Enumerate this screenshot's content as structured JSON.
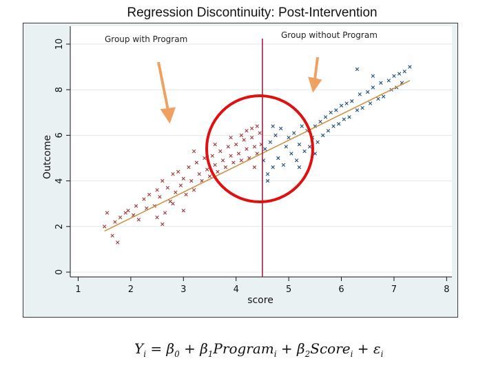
{
  "slide_title": "Regression Discontinuity: Post-Intervention",
  "labels": {
    "group_with_program": "Group with Program",
    "group_without_program": "Group without Program"
  },
  "equation": {
    "lhs": "Y",
    "rhs_a": " = β",
    "rhs_b": " + β",
    "program": "Program",
    "rhs_c": " + β",
    "score": "Score",
    "rhs_d": " + ε",
    "sub_i": "i",
    "sub_0": "0",
    "sub_1": "1",
    "sub_2": "2"
  },
  "colors": {
    "plot_background": "#ffffff",
    "frame_background": "#eaf1f3",
    "program_points": "#9b3a3a",
    "no_program_points": "#1f4e79",
    "regression_line": "#d09040",
    "cutoff_line": "#a0203a",
    "circle": "#e01010",
    "arrow": "#f0a060"
  },
  "chart_data": {
    "type": "scatter",
    "title": "",
    "xlabel": "score",
    "ylabel": "Outcome",
    "xlim": [
      0.85,
      8.1
    ],
    "ylim": [
      0,
      10
    ],
    "xticks": [
      1,
      2,
      3,
      4,
      5,
      6,
      7,
      8
    ],
    "yticks": [
      0,
      2,
      4,
      6,
      8,
      10
    ],
    "cutoff_x": 4.5,
    "grid": true,
    "marker": "x",
    "series": [
      {
        "name": "",
        "group": "program",
        "points": [
          [
            1.5,
            2.0
          ],
          [
            1.55,
            2.6
          ],
          [
            1.65,
            1.6
          ],
          [
            1.7,
            2.2
          ],
          [
            1.75,
            1.3
          ],
          [
            1.8,
            2.4
          ],
          [
            1.9,
            2.6
          ],
          [
            1.95,
            2.7
          ],
          [
            2.05,
            2.5
          ],
          [
            2.1,
            2.9
          ],
          [
            2.15,
            2.3
          ],
          [
            2.25,
            3.2
          ],
          [
            2.3,
            2.8
          ],
          [
            2.35,
            3.4
          ],
          [
            2.45,
            2.9
          ],
          [
            2.5,
            3.6
          ],
          [
            2.5,
            2.4
          ],
          [
            2.55,
            3.3
          ],
          [
            2.6,
            4.0
          ],
          [
            2.65,
            2.6
          ],
          [
            2.7,
            3.7
          ],
          [
            2.75,
            3.1
          ],
          [
            2.8,
            4.3
          ],
          [
            2.85,
            3.5
          ],
          [
            2.9,
            4.4
          ],
          [
            2.95,
            3.8
          ],
          [
            3.0,
            4.1
          ],
          [
            3.05,
            3.4
          ],
          [
            3.1,
            4.6
          ],
          [
            3.15,
            4.0
          ],
          [
            3.2,
            3.6
          ],
          [
            3.25,
            4.8
          ],
          [
            3.3,
            4.3
          ],
          [
            3.35,
            4.0
          ],
          [
            3.4,
            5.0
          ],
          [
            3.45,
            4.5
          ],
          [
            3.5,
            4.2
          ],
          [
            3.55,
            5.1
          ],
          [
            3.6,
            4.7
          ],
          [
            3.65,
            4.4
          ],
          [
            3.7,
            5.3
          ],
          [
            3.75,
            4.9
          ],
          [
            3.8,
            4.6
          ],
          [
            3.85,
            5.5
          ],
          [
            3.9,
            5.1
          ],
          [
            3.95,
            4.8
          ],
          [
            4.0,
            5.6
          ],
          [
            4.05,
            5.2
          ],
          [
            4.1,
            4.9
          ],
          [
            4.15,
            5.8
          ],
          [
            4.2,
            5.4
          ],
          [
            4.25,
            5.0
          ],
          [
            4.3,
            5.9
          ],
          [
            4.35,
            5.5
          ],
          [
            4.4,
            5.2
          ],
          [
            4.45,
            6.1
          ],
          [
            4.48,
            5.6
          ],
          [
            4.2,
            6.2
          ],
          [
            4.1,
            6.0
          ],
          [
            4.3,
            6.3
          ],
          [
            3.9,
            5.9
          ],
          [
            4.4,
            6.4
          ],
          [
            4.35,
            4.6
          ],
          [
            3.6,
            5.6
          ],
          [
            3.2,
            5.3
          ],
          [
            2.6,
            2.1
          ],
          [
            3.0,
            2.7
          ],
          [
            2.8,
            3.0
          ]
        ]
      },
      {
        "name": "",
        "group": "no_program",
        "points": [
          [
            4.52,
            4.9
          ],
          [
            4.55,
            5.4
          ],
          [
            4.6,
            4.3
          ],
          [
            4.65,
            5.7
          ],
          [
            4.7,
            4.6
          ],
          [
            4.75,
            6.0
          ],
          [
            4.8,
            5.0
          ],
          [
            4.85,
            6.3
          ],
          [
            4.9,
            4.7
          ],
          [
            4.95,
            5.5
          ],
          [
            5.0,
            5.9
          ],
          [
            5.05,
            5.2
          ],
          [
            5.1,
            6.1
          ],
          [
            5.15,
            4.9
          ],
          [
            5.2,
            5.6
          ],
          [
            5.25,
            6.4
          ],
          [
            5.3,
            5.3
          ],
          [
            5.35,
            6.2
          ],
          [
            5.4,
            5.5
          ],
          [
            5.45,
            5.9
          ],
          [
            5.5,
            6.4
          ],
          [
            5.55,
            5.7
          ],
          [
            5.6,
            6.6
          ],
          [
            5.65,
            6.0
          ],
          [
            5.7,
            6.8
          ],
          [
            5.75,
            6.2
          ],
          [
            5.8,
            7.0
          ],
          [
            5.85,
            6.4
          ],
          [
            5.9,
            7.1
          ],
          [
            5.95,
            6.5
          ],
          [
            6.0,
            7.3
          ],
          [
            6.05,
            6.7
          ],
          [
            6.1,
            7.4
          ],
          [
            6.15,
            6.8
          ],
          [
            6.2,
            7.5
          ],
          [
            6.3,
            7.1
          ],
          [
            6.35,
            7.8
          ],
          [
            6.4,
            7.2
          ],
          [
            6.5,
            7.9
          ],
          [
            6.55,
            7.4
          ],
          [
            6.6,
            8.1
          ],
          [
            6.7,
            7.6
          ],
          [
            6.75,
            8.3
          ],
          [
            6.8,
            7.7
          ],
          [
            6.9,
            8.4
          ],
          [
            6.95,
            8.0
          ],
          [
            7.0,
            8.6
          ],
          [
            7.05,
            8.1
          ],
          [
            7.1,
            8.7
          ],
          [
            7.15,
            8.3
          ],
          [
            7.2,
            8.8
          ],
          [
            7.3,
            9.0
          ],
          [
            6.3,
            8.9
          ],
          [
            6.6,
            8.6
          ],
          [
            4.7,
            6.4
          ],
          [
            4.6,
            4.0
          ],
          [
            5.2,
            4.6
          ],
          [
            5.5,
            5.2
          ]
        ]
      }
    ],
    "regression_line": [
      [
        1.5,
        1.8
      ],
      [
        7.3,
        8.4
      ]
    ]
  }
}
